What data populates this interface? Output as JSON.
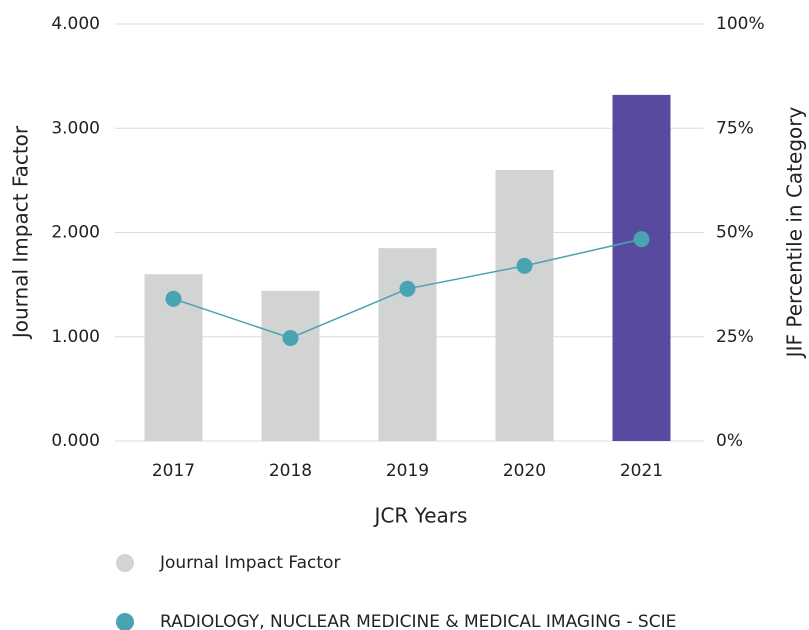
{
  "chart_data": {
    "type": "bar",
    "categories": [
      "2017",
      "2018",
      "2019",
      "2020",
      "2021"
    ],
    "xlabel": "JCR Years",
    "ylabel": "Journal Impact Factor",
    "y2label": "JIF Percentile in Category",
    "ylim": [
      0,
      4
    ],
    "yticks": [
      {
        "value": 0,
        "label": "0.000"
      },
      {
        "value": 1,
        "label": "1.000"
      },
      {
        "value": 2,
        "label": "2.000"
      },
      {
        "value": 3,
        "label": "3.000"
      },
      {
        "value": 4,
        "label": "4.000"
      }
    ],
    "y2lim": [
      0,
      100
    ],
    "y2ticks": [
      {
        "value": 0,
        "label": "0%"
      },
      {
        "value": 25,
        "label": "25%"
      },
      {
        "value": 50,
        "label": "50%"
      },
      {
        "value": 75,
        "label": "75%"
      },
      {
        "value": 100,
        "label": "100%"
      }
    ],
    "grid": true,
    "legend": "bottom",
    "series": [
      {
        "name": "Journal Impact Factor",
        "type": "bar",
        "color": "#d2d3d3",
        "colors": [
          "#d2d3d3",
          "#d2d3d3",
          "#d2d3d3",
          "#d2d3d3",
          "#574a9f"
        ],
        "values": [
          1.6,
          1.44,
          1.85,
          2.6,
          3.32
        ]
      },
      {
        "name": "RADIOLOGY, NUCLEAR MEDICINE & MEDICAL IMAGING - SCIE",
        "type": "line",
        "axis": "y2",
        "color": "#4aa3b1",
        "values": [
          34.1,
          24.7,
          36.5,
          42.0,
          48.4
        ]
      }
    ]
  }
}
